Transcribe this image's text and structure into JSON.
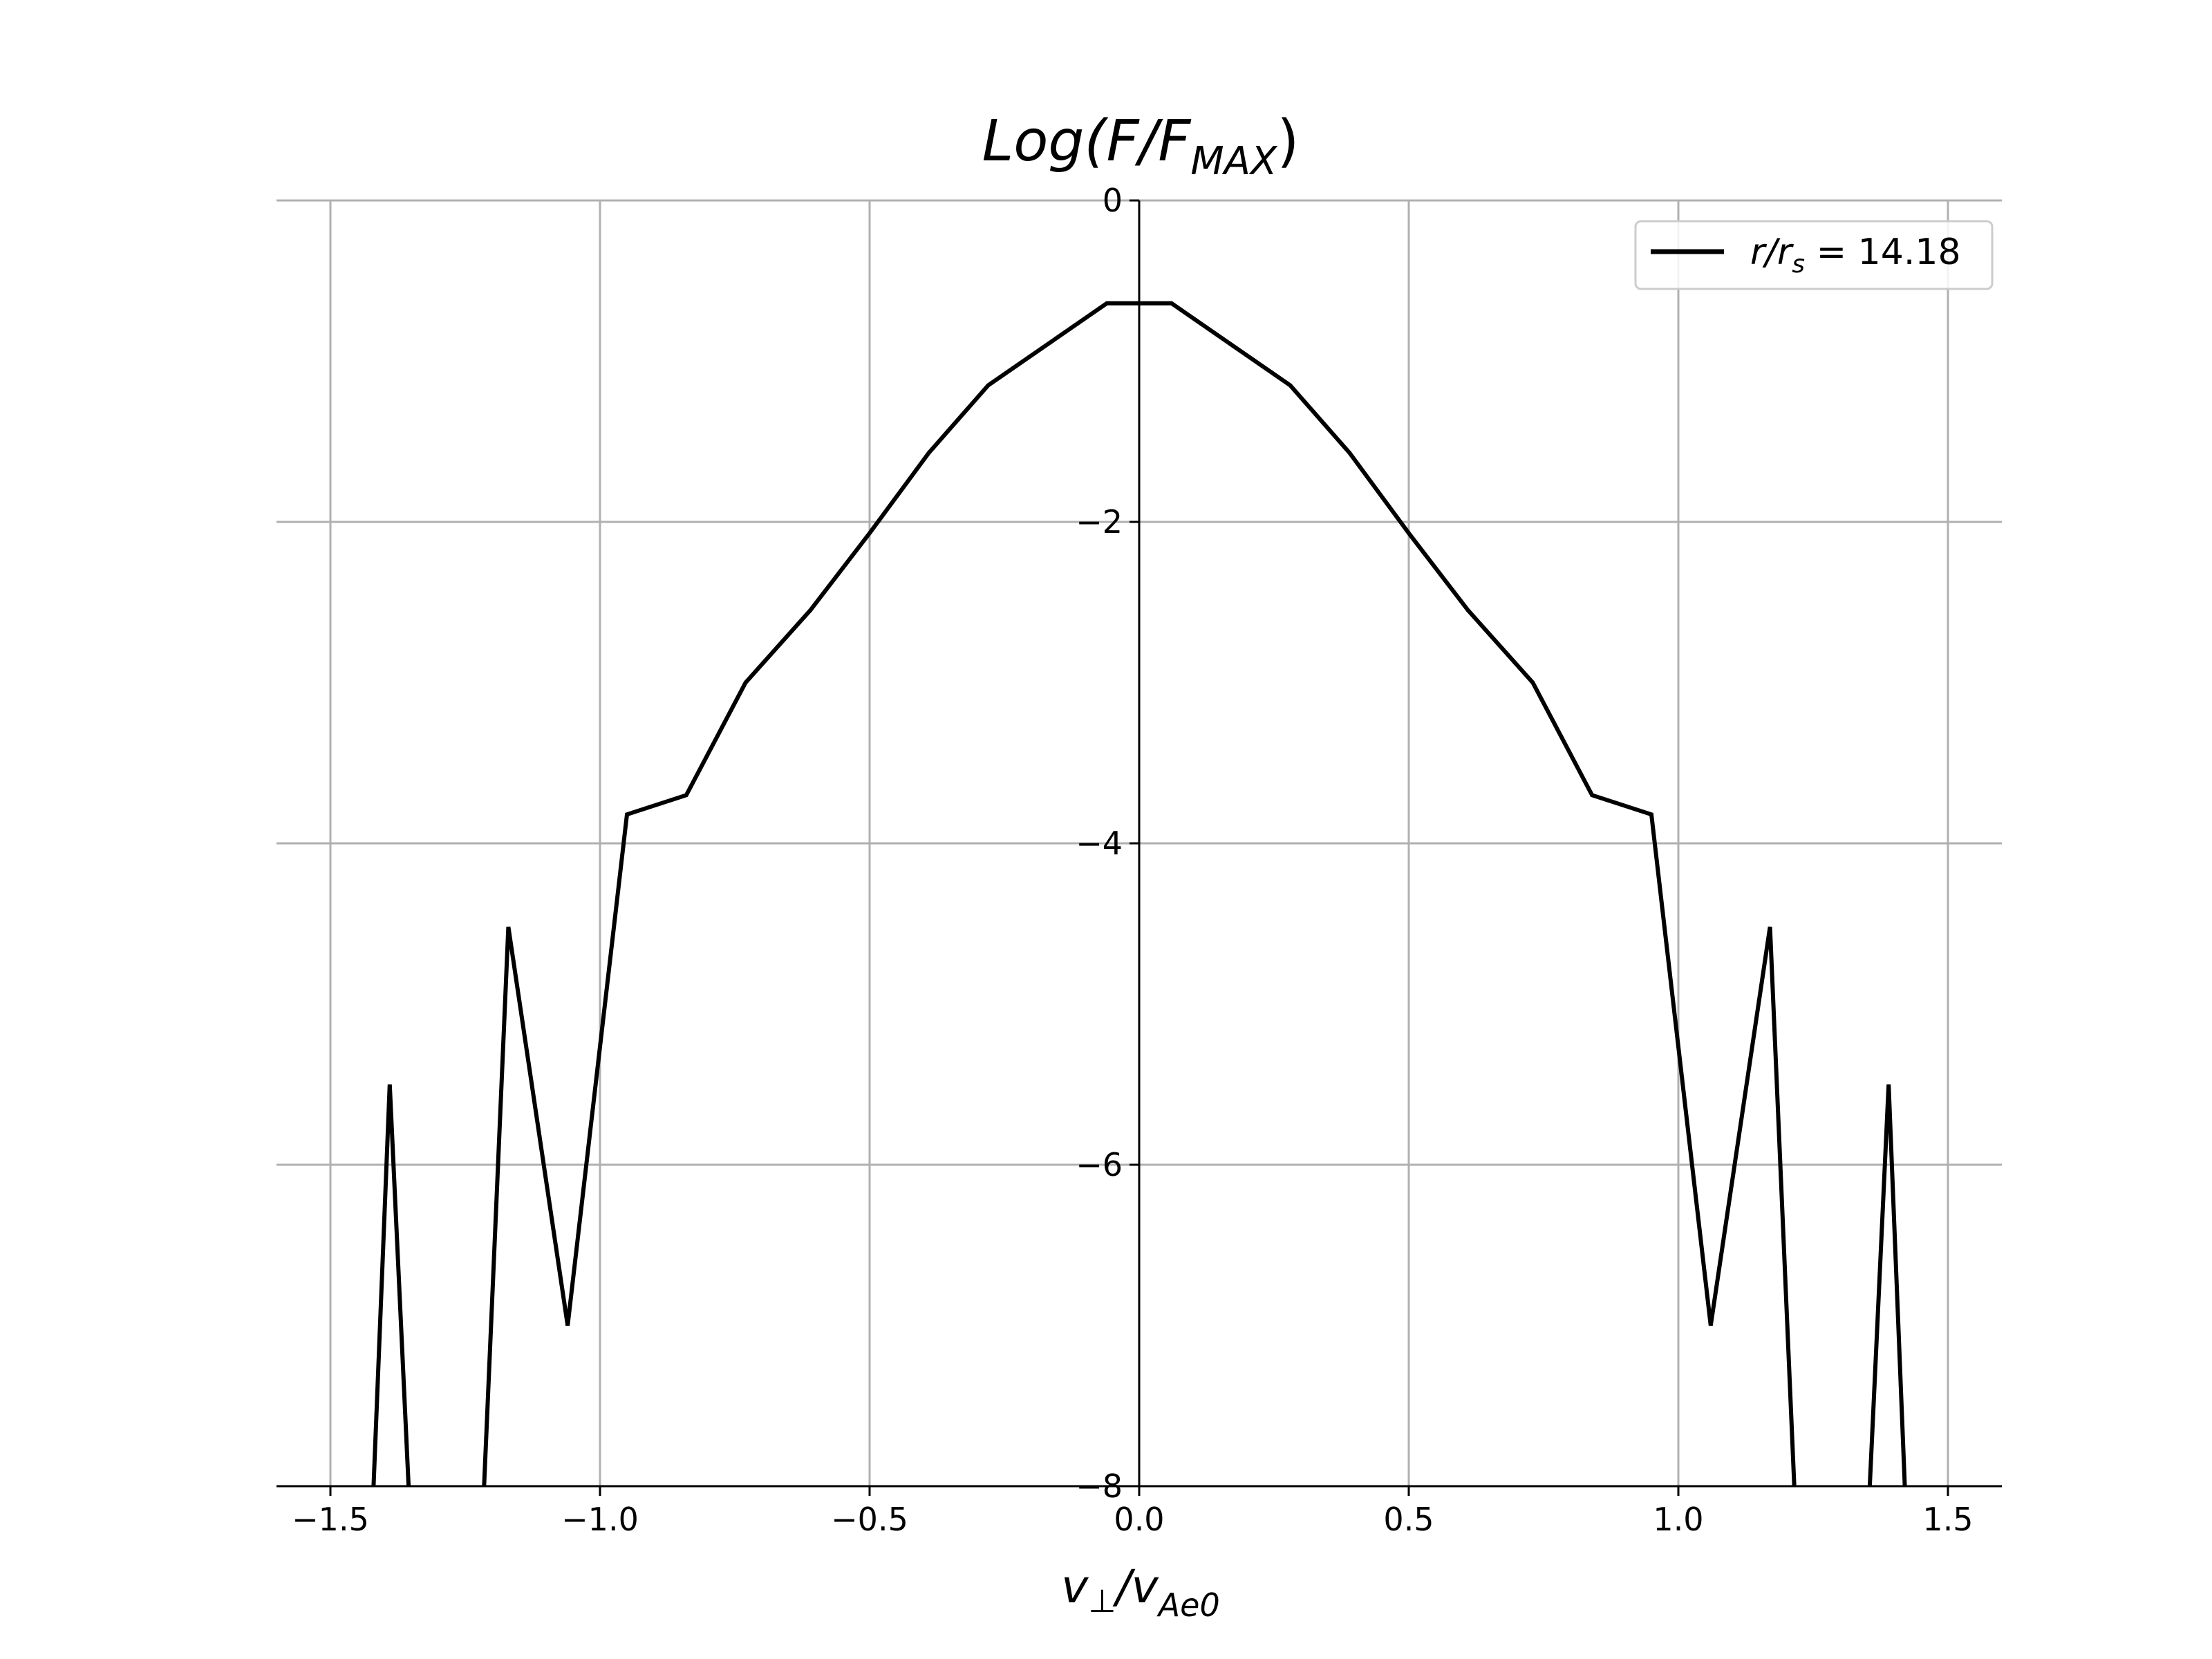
{
  "chart_data": {
    "type": "line",
    "title": {
      "base": "Log(F/F",
      "sub": "MAX",
      "close": ")"
    },
    "xlabel": {
      "base": "v",
      "sub1": "⊥",
      "slash": "/v",
      "sub2": "Ae0"
    },
    "ylabel": "",
    "xlim": [
      -1.6,
      1.6
    ],
    "ylim": [
      -8,
      0
    ],
    "xticks": [
      -1.5,
      -1.0,
      -0.5,
      0.0,
      0.5,
      1.0,
      1.5
    ],
    "xtick_labels": [
      "−1.5",
      "−1.0",
      "−0.5",
      "0.0",
      "0.5",
      "1.0",
      "1.5"
    ],
    "yticks": [
      0,
      -2,
      -4,
      -6,
      -8
    ],
    "ytick_labels": [
      "0",
      "−2",
      "−4",
      "−6",
      "−8"
    ],
    "grid": true,
    "legend_placement": "top-right",
    "series": [
      {
        "name": {
          "base": "r/r",
          "sub": "s",
          "rest": " = 14.18"
        },
        "color": "#000000",
        "segments": [
          [
            [
              -1.42,
              -8.0
            ],
            [
              -1.39,
              -5.5
            ],
            [
              -1.355,
              -8.0
            ]
          ],
          [
            [
              -1.215,
              -8.0
            ],
            [
              -1.17,
              -4.52
            ],
            [
              -1.06,
              -7.0
            ],
            [
              -0.95,
              -3.82
            ],
            [
              -0.84,
              -3.7
            ],
            [
              -0.73,
              -3.0
            ],
            [
              -0.61,
              -2.55
            ],
            [
              -0.5,
              -2.07
            ],
            [
              -0.39,
              -1.57
            ],
            [
              -0.28,
              -1.15
            ],
            [
              -0.06,
              -0.64
            ],
            [
              0.06,
              -0.64
            ],
            [
              0.28,
              -1.15
            ],
            [
              0.39,
              -1.57
            ],
            [
              0.5,
              -2.07
            ],
            [
              0.61,
              -2.55
            ],
            [
              0.73,
              -3.0
            ],
            [
              0.84,
              -3.7
            ],
            [
              0.95,
              -3.82
            ],
            [
              1.06,
              -7.0
            ],
            [
              1.17,
              -4.52
            ],
            [
              1.215,
              -8.0
            ]
          ],
          [
            [
              1.355,
              -8.0
            ],
            [
              1.39,
              -5.5
            ],
            [
              1.42,
              -8.0
            ]
          ]
        ]
      }
    ]
  }
}
